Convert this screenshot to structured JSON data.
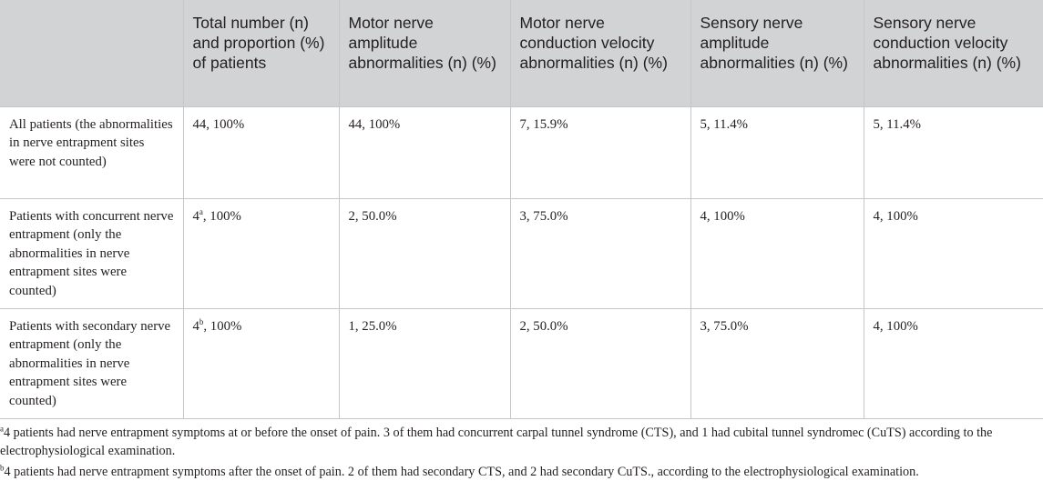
{
  "table": {
    "headers": [
      "",
      "Total number (n) and proportion (%) of patients",
      "Motor nerve amplitude abnormalities (n) (%)",
      "Motor nerve conduction velocity abnormalities (n) (%)",
      "Sensory nerve amplitude abnormalities (n) (%)",
      "Sensory nerve conduction velocity abnormalities (n) (%)"
    ],
    "rows": [
      {
        "label": "All patients (the abnormalities in nerve entrapment sites were not counted)",
        "total": "44, 100%",
        "total_sup": "",
        "total_rest": "",
        "motor_amp": "44, 100%",
        "motor_vel": "7, 15.9%",
        "sensory_amp": "5, 11.4%",
        "sensory_vel": "5, 11.4%"
      },
      {
        "label": "Patients with concurrent nerve entrapment (only the abnormalities in nerve entrapment sites were counted)",
        "total": "4",
        "total_sup": "a",
        "total_rest": ", 100%",
        "motor_amp": "2, 50.0%",
        "motor_vel": "3, 75.0%",
        "sensory_amp": "4, 100%",
        "sensory_vel": "4, 100%"
      },
      {
        "label": "Patients with secondary nerve entrapment (only the abnormalities in nerve entrapment sites were counted)",
        "total": "4",
        "total_sup": "b",
        "total_rest": ", 100%",
        "motor_amp": "1, 25.0%",
        "motor_vel": "2, 50.0%",
        "sensory_amp": "3, 75.0%",
        "sensory_vel": "4, 100%"
      }
    ]
  },
  "footnotes": [
    {
      "marker": "a",
      "text": "4 patients had nerve entrapment symptoms at or before the onset of pain. 3 of them had concurrent carpal tunnel syndrome (CTS), and 1 had cubital tunnel syndromec (CuTS) according to the electrophysiological examination."
    },
    {
      "marker": "b",
      "text": "4 patients had nerve entrapment symptoms after the onset of pain. 2 of them had secondary CTS, and 2 had secondary CuTS., according to the electrophysiological examination."
    }
  ]
}
